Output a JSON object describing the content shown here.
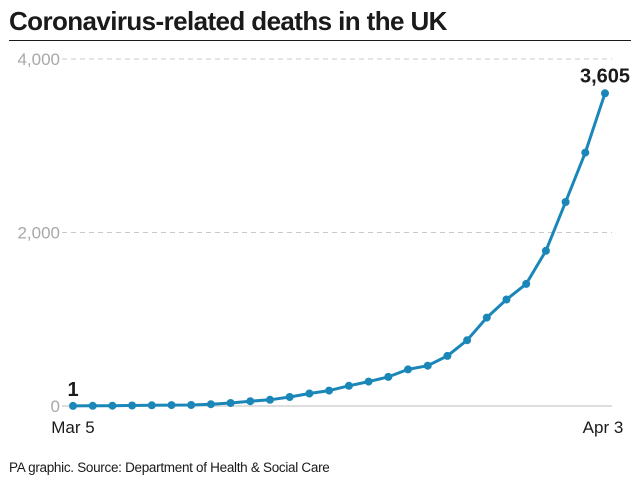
{
  "chart_data": {
    "type": "line",
    "title": "Coronavirus-related deaths in the UK",
    "x_start_label": "Mar 5",
    "x_end_label": "Apr 3",
    "ylim": [
      0,
      4000
    ],
    "yticks": [
      {
        "value": 0,
        "label": "0"
      },
      {
        "value": 2000,
        "label": "2,000"
      },
      {
        "value": 4000,
        "label": "4,000"
      }
    ],
    "grid": true,
    "series": [
      {
        "color": "#1a87b8",
        "values": [
          1,
          2,
          3,
          6,
          8,
          10,
          11,
          21,
          35,
          55,
          71,
          104,
          144,
          177,
          233,
          281,
          335,
          422,
          465,
          578,
          759,
          1019,
          1228,
          1408,
          1789,
          2352,
          2921,
          3605
        ]
      }
    ],
    "annotations": [
      {
        "index": 0,
        "label": "1"
      },
      {
        "index": 27,
        "label": "3,605"
      }
    ]
  },
  "footer": {
    "source": "PA graphic. Source: Department of Health & Social Care"
  }
}
